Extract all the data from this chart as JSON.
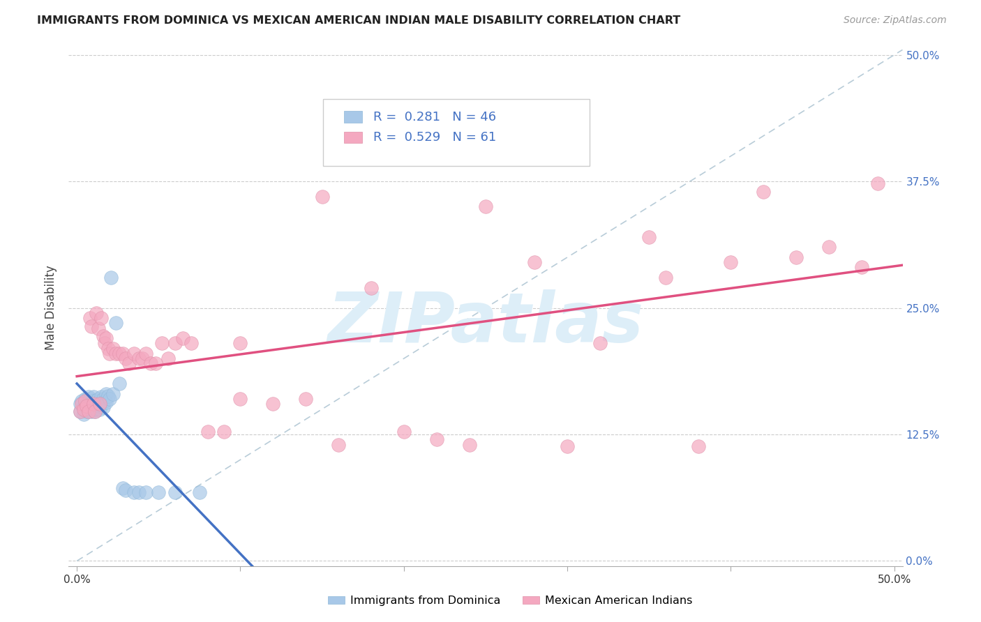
{
  "title": "IMMIGRANTS FROM DOMINICA VS MEXICAN AMERICAN INDIAN MALE DISABILITY CORRELATION CHART",
  "source": "Source: ZipAtlas.com",
  "ylabel": "Male Disability",
  "ytick_labels": [
    "0.0%",
    "12.5%",
    "25.0%",
    "37.5%",
    "50.0%"
  ],
  "ytick_values": [
    0.0,
    0.125,
    0.25,
    0.375,
    0.5
  ],
  "xtick_values": [
    0.0,
    0.1,
    0.2,
    0.3,
    0.4,
    0.5
  ],
  "xlim": [
    -0.005,
    0.505
  ],
  "ylim": [
    -0.005,
    0.505
  ],
  "legend_label1": "Immigrants from Dominica",
  "legend_label2": "Mexican American Indians",
  "R1": 0.281,
  "N1": 46,
  "R2": 0.529,
  "N2": 61,
  "color1": "#a8c8e8",
  "color2": "#f4a8c0",
  "trendline1_color": "#4472c4",
  "trendline2_color": "#e05080",
  "dashed_line_color": "#b8ccd8",
  "watermark_text": "ZIPatlas",
  "watermark_color": "#ddeef8",
  "scatter1_x": [
    0.002,
    0.002,
    0.003,
    0.004,
    0.004,
    0.005,
    0.006,
    0.006,
    0.007,
    0.007,
    0.008,
    0.008,
    0.009,
    0.009,
    0.01,
    0.01,
    0.01,
    0.011,
    0.011,
    0.012,
    0.012,
    0.013,
    0.013,
    0.014,
    0.014,
    0.015,
    0.015,
    0.016,
    0.016,
    0.017,
    0.018,
    0.018,
    0.019,
    0.02,
    0.021,
    0.022,
    0.024,
    0.026,
    0.028,
    0.03,
    0.035,
    0.038,
    0.042,
    0.05,
    0.06,
    0.075
  ],
  "scatter1_y": [
    0.155,
    0.148,
    0.158,
    0.152,
    0.145,
    0.16,
    0.155,
    0.148,
    0.162,
    0.155,
    0.16,
    0.15,
    0.155,
    0.148,
    0.162,
    0.158,
    0.15,
    0.155,
    0.148,
    0.158,
    0.15,
    0.16,
    0.153,
    0.158,
    0.15,
    0.162,
    0.155,
    0.16,
    0.152,
    0.158,
    0.165,
    0.157,
    0.163,
    0.16,
    0.28,
    0.165,
    0.235,
    0.175,
    0.072,
    0.07,
    0.068,
    0.068,
    0.068,
    0.068,
    0.068,
    0.068
  ],
  "scatter2_x": [
    0.002,
    0.003,
    0.004,
    0.005,
    0.006,
    0.007,
    0.008,
    0.009,
    0.01,
    0.011,
    0.012,
    0.013,
    0.014,
    0.015,
    0.016,
    0.017,
    0.018,
    0.019,
    0.02,
    0.022,
    0.024,
    0.026,
    0.028,
    0.03,
    0.032,
    0.035,
    0.038,
    0.04,
    0.042,
    0.045,
    0.048,
    0.052,
    0.056,
    0.06,
    0.065,
    0.07,
    0.08,
    0.09,
    0.1,
    0.12,
    0.14,
    0.16,
    0.2,
    0.24,
    0.28,
    0.32,
    0.36,
    0.4,
    0.44,
    0.48,
    0.15,
    0.25,
    0.35,
    0.1,
    0.18,
    0.22,
    0.3,
    0.38,
    0.42,
    0.46,
    0.49
  ],
  "scatter2_y": [
    0.148,
    0.155,
    0.15,
    0.158,
    0.153,
    0.148,
    0.24,
    0.232,
    0.155,
    0.148,
    0.245,
    0.23,
    0.155,
    0.24,
    0.222,
    0.215,
    0.22,
    0.21,
    0.205,
    0.21,
    0.205,
    0.205,
    0.205,
    0.2,
    0.195,
    0.205,
    0.2,
    0.2,
    0.205,
    0.195,
    0.195,
    0.215,
    0.2,
    0.215,
    0.22,
    0.215,
    0.128,
    0.128,
    0.16,
    0.155,
    0.16,
    0.115,
    0.128,
    0.115,
    0.295,
    0.215,
    0.28,
    0.295,
    0.3,
    0.29,
    0.36,
    0.35,
    0.32,
    0.215,
    0.27,
    0.12,
    0.113,
    0.113,
    0.365,
    0.31,
    0.373
  ]
}
